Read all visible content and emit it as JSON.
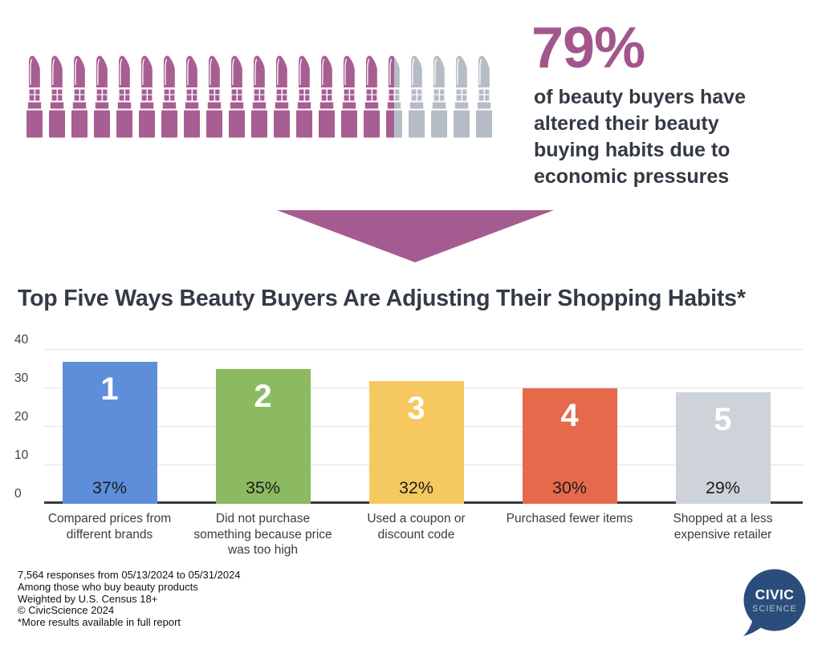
{
  "colors": {
    "accent_purple": "#a3568c",
    "lipstick_purple": "#a75e92",
    "lipstick_gray": "#b6bcc5",
    "dark_text": "#333a44",
    "bar_blue": "#5e8ed9",
    "bar_green": "#8cba60",
    "bar_yellow": "#f5c95f",
    "bar_orange": "#e6694b",
    "bar_gray": "#ced3da",
    "logo_navy": "#2a4d7b"
  },
  "hero": {
    "stat_value": "79%",
    "stat_description": "of beauty buyers have\naltered their beauty\nbuying habits due to\neconomic pressures",
    "pictogram": {
      "icon": "lipstick-icon",
      "total_icons": 21,
      "full_colored": 16,
      "partial_colored": 1,
      "empty": 4,
      "represents": "79% of beauty buyers"
    }
  },
  "section_title": "Top Five Ways Beauty Buyers Are Adjusting Their Shopping Habits*",
  "chart_data": {
    "type": "bar",
    "title": "Top Five Ways Beauty Buyers Are Adjusting Their Shopping Habits*",
    "categories": [
      "Compared prices from different brands",
      "Did not purchase something because price was too high",
      "Used a coupon or discount code",
      "Purchased fewer items",
      "Shopped at a less expensive retailer"
    ],
    "category_lines": [
      "Compared prices from\ndifferent brands",
      "Did not purchase\nsomething because price\nwas too high",
      "Used a coupon or\ndiscount code",
      "Purchased fewer items",
      "Shopped at a less\nexpensive retailer"
    ],
    "values": [
      37,
      35,
      32,
      30,
      29
    ],
    "value_labels": [
      "37%",
      "35%",
      "32%",
      "30%",
      "29%"
    ],
    "rank_labels": [
      "1",
      "2",
      "3",
      "4",
      "5"
    ],
    "bar_colors": [
      "#5e8ed9",
      "#8cba60",
      "#f5c95f",
      "#e6694b",
      "#ced3da"
    ],
    "xlabel": "",
    "ylabel": "",
    "ylim": [
      0,
      40
    ],
    "yticks": [
      0,
      10,
      20,
      30,
      40
    ],
    "grid": true,
    "legend": "none"
  },
  "footer": {
    "lines": [
      "7,564 responses from 05/13/2024 to 05/31/2024",
      "Among those who buy beauty products",
      "Weighted by U.S. Census 18+",
      "© CivicScience 2024",
      "*More results available in full report"
    ]
  },
  "logo": {
    "line1": "CIVIC",
    "line2": "SCIENCE"
  }
}
